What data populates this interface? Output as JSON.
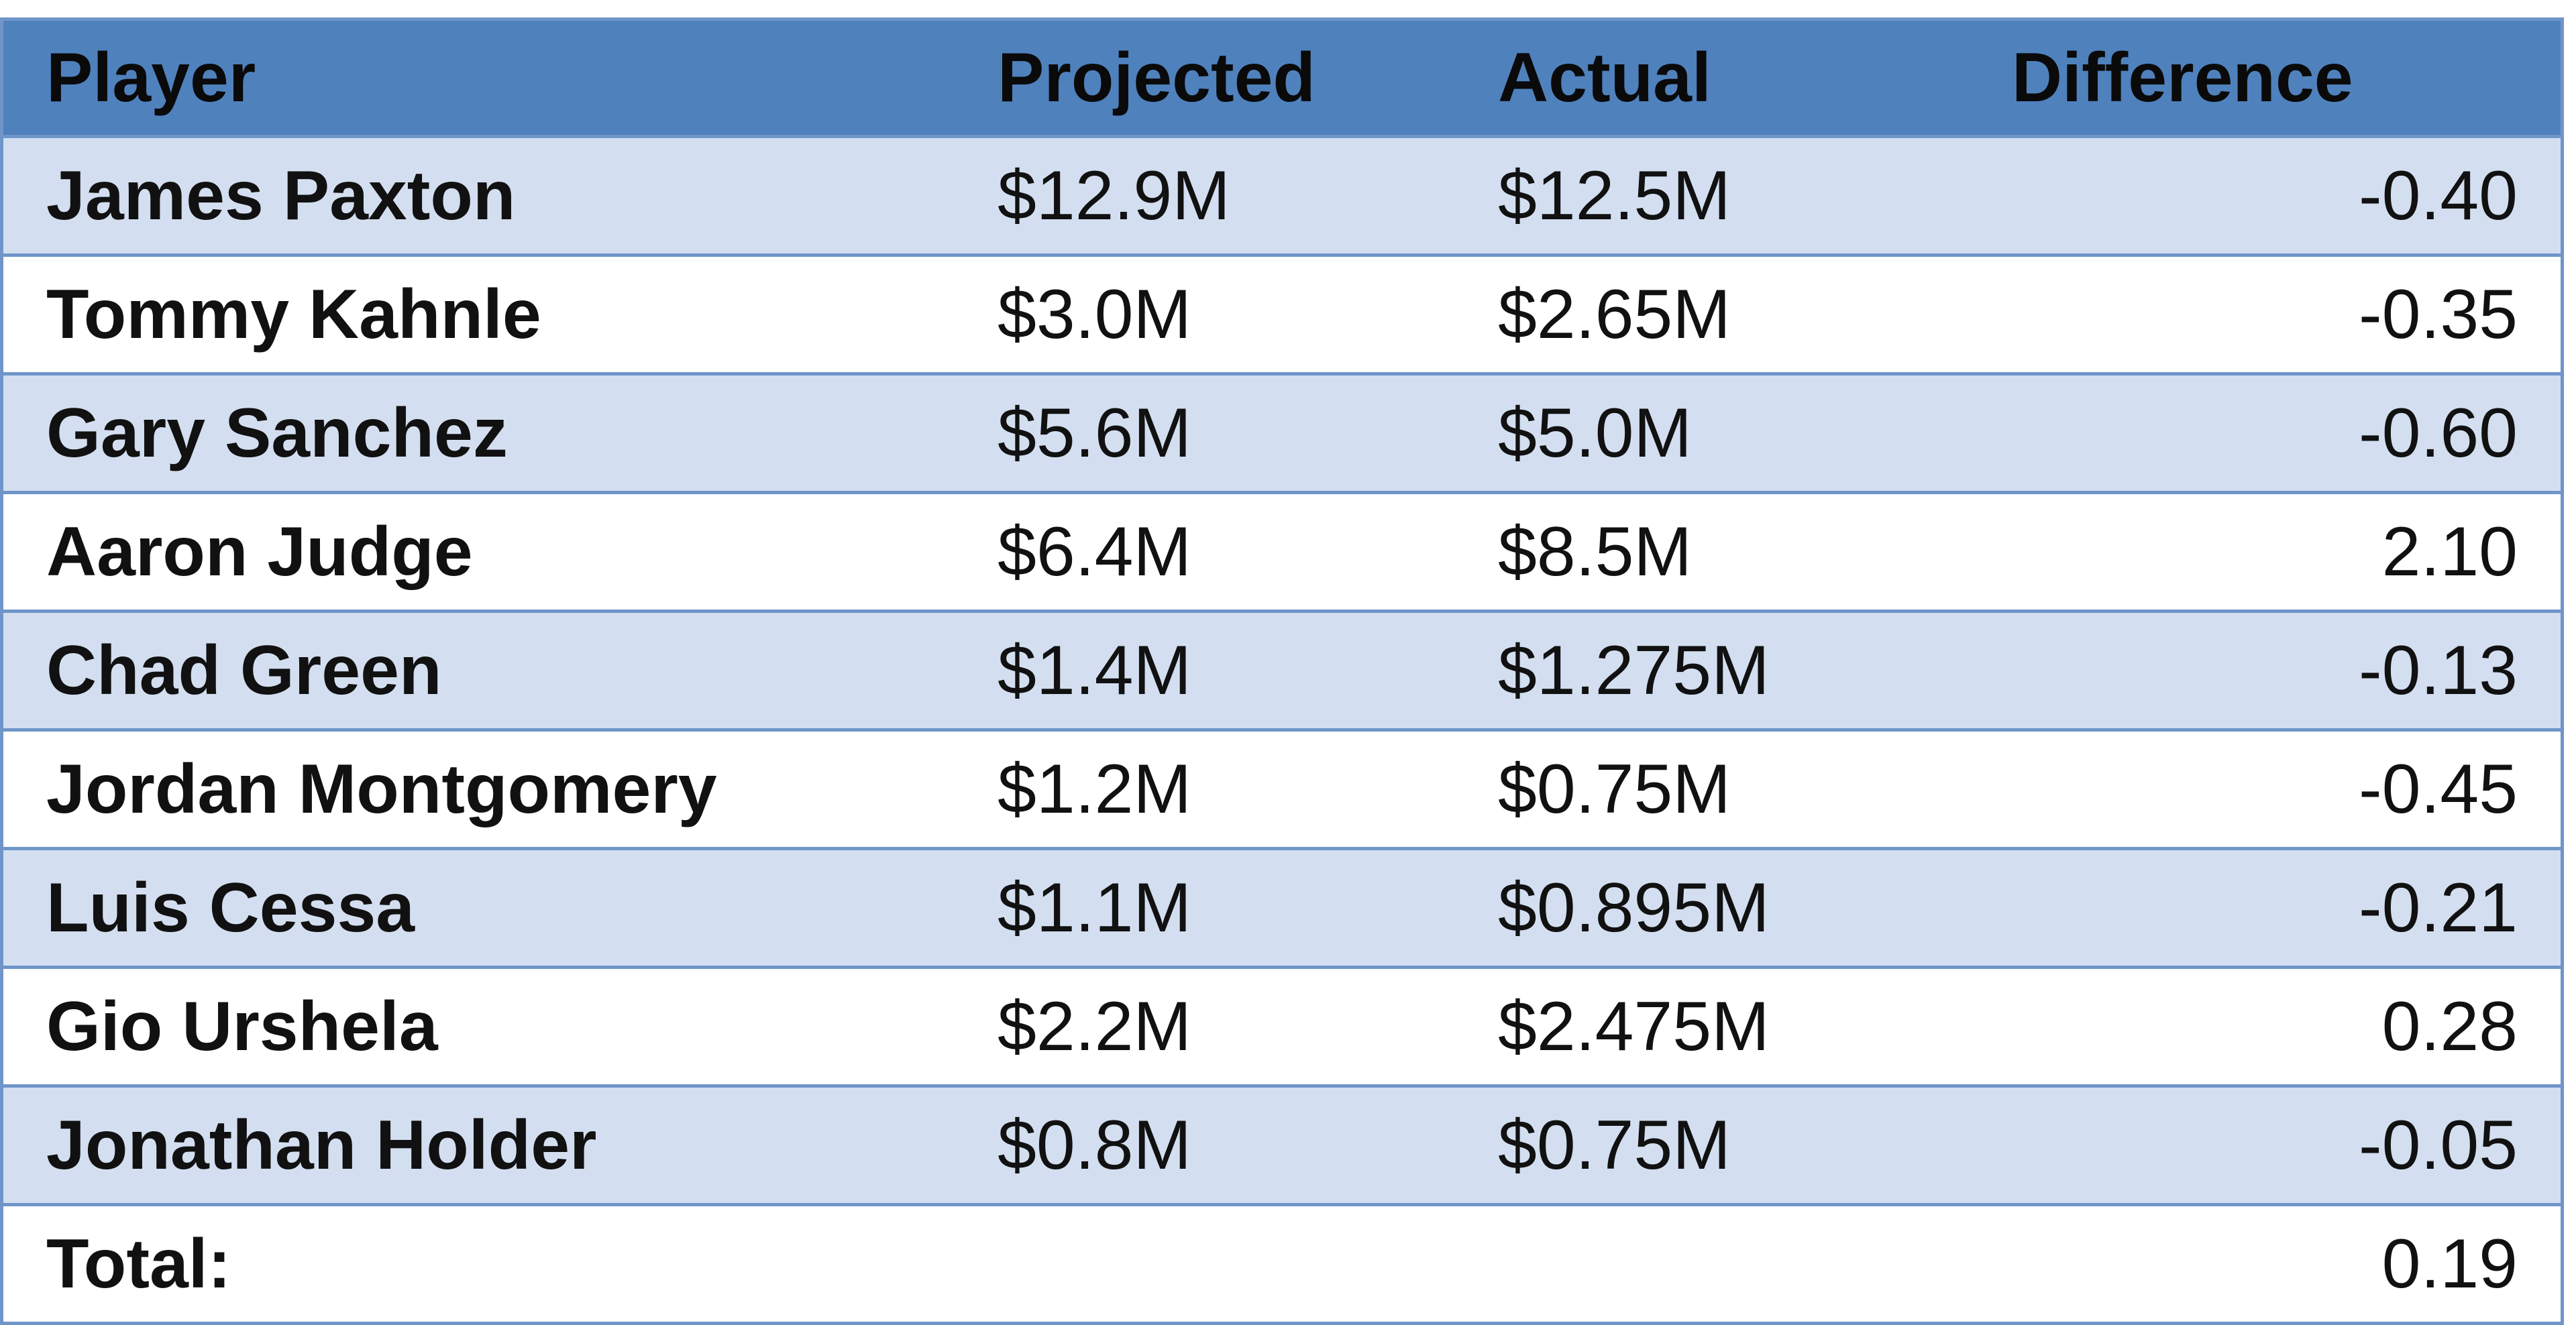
{
  "table": {
    "headers": {
      "player": "Player",
      "projected": "Projected",
      "actual": "Actual",
      "difference": "Difference"
    },
    "rows": [
      {
        "player": "James Paxton",
        "projected": "$12.9M",
        "actual": "$12.5M",
        "difference": "-0.40"
      },
      {
        "player": "Tommy Kahnle",
        "projected": "$3.0M",
        "actual": "$2.65M",
        "difference": "-0.35"
      },
      {
        "player": "Gary Sanchez",
        "projected": "$5.6M",
        "actual": "$5.0M",
        "difference": "-0.60"
      },
      {
        "player": "Aaron Judge",
        "projected": "$6.4M",
        "actual": "$8.5M",
        "difference": "2.10"
      },
      {
        "player": "Chad Green",
        "projected": "$1.4M",
        "actual": "$1.275M",
        "difference": "-0.13"
      },
      {
        "player": "Jordan Montgomery",
        "projected": "$1.2M",
        "actual": "$0.75M",
        "difference": "-0.45"
      },
      {
        "player": "Luis Cessa",
        "projected": "$1.1M",
        "actual": "$0.895M",
        "difference": "-0.21"
      },
      {
        "player": "Gio Urshela",
        "projected": "$2.2M",
        "actual": "$2.475M",
        "difference": "0.28"
      },
      {
        "player": "Jonathan Holder",
        "projected": "$0.8M",
        "actual": "$0.75M",
        "difference": "-0.05"
      }
    ],
    "total": {
      "label": "Total:",
      "projected": "",
      "actual": "",
      "difference": "0.19"
    }
  },
  "colors": {
    "header_bg": "#4f81bd",
    "band_bg": "#d3dff0",
    "border": "#6f95c9"
  }
}
